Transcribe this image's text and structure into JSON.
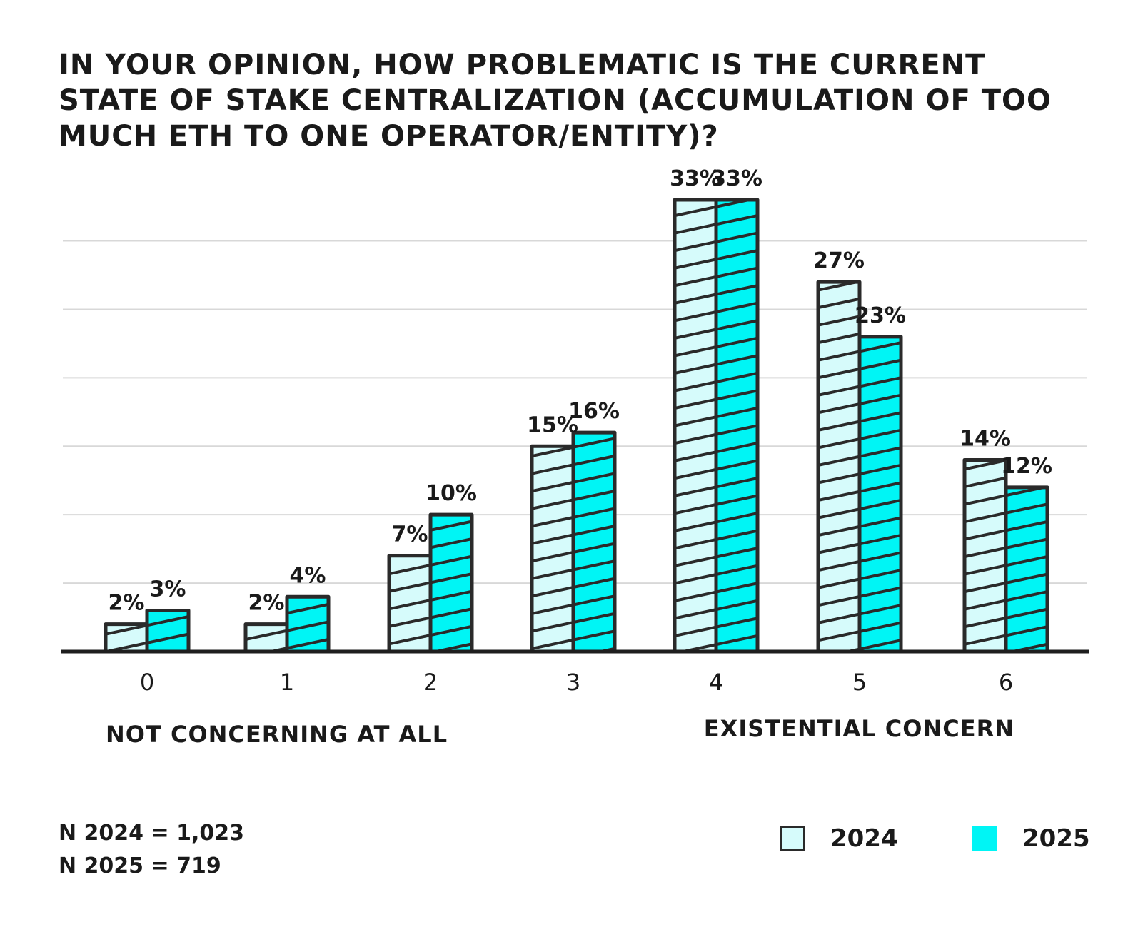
{
  "chart_data": {
    "type": "bar",
    "title": "In your opinion, how problematic is the current state of stake centralization (accumulation of too much ETH to one operator/entity)?",
    "categories": [
      "0",
      "1",
      "2",
      "3",
      "4",
      "5",
      "6"
    ],
    "series": [
      {
        "name": "2024",
        "values": [
          2,
          2,
          7,
          15,
          33,
          27,
          14
        ],
        "labels": [
          "2%",
          "2%",
          "7%",
          "15%",
          "33%",
          "27%",
          "14%"
        ],
        "color": "#d6fbfb"
      },
      {
        "name": "2025",
        "values": [
          3,
          4,
          10,
          16,
          33,
          23,
          12
        ],
        "labels": [
          "3%",
          "4%",
          "10%",
          "16%",
          "33%",
          "23%",
          "12%"
        ],
        "color": "#00f5f5"
      }
    ],
    "ylim": [
      0,
      35
    ],
    "grid": true,
    "xlabel": "",
    "ylabel": "",
    "scale_low_label": "Not concerning at all",
    "scale_high_label": "Existential concern",
    "legend_position": "bottom-right"
  },
  "footnote": {
    "n_2024": "N 2024 = 1,023",
    "n_2025": "N 2025 = 719"
  },
  "colors": {
    "light": "#d6fbfb",
    "cyan": "#00f5f5",
    "outline": "#2a2a2a",
    "grid": "#d8d8d8"
  }
}
